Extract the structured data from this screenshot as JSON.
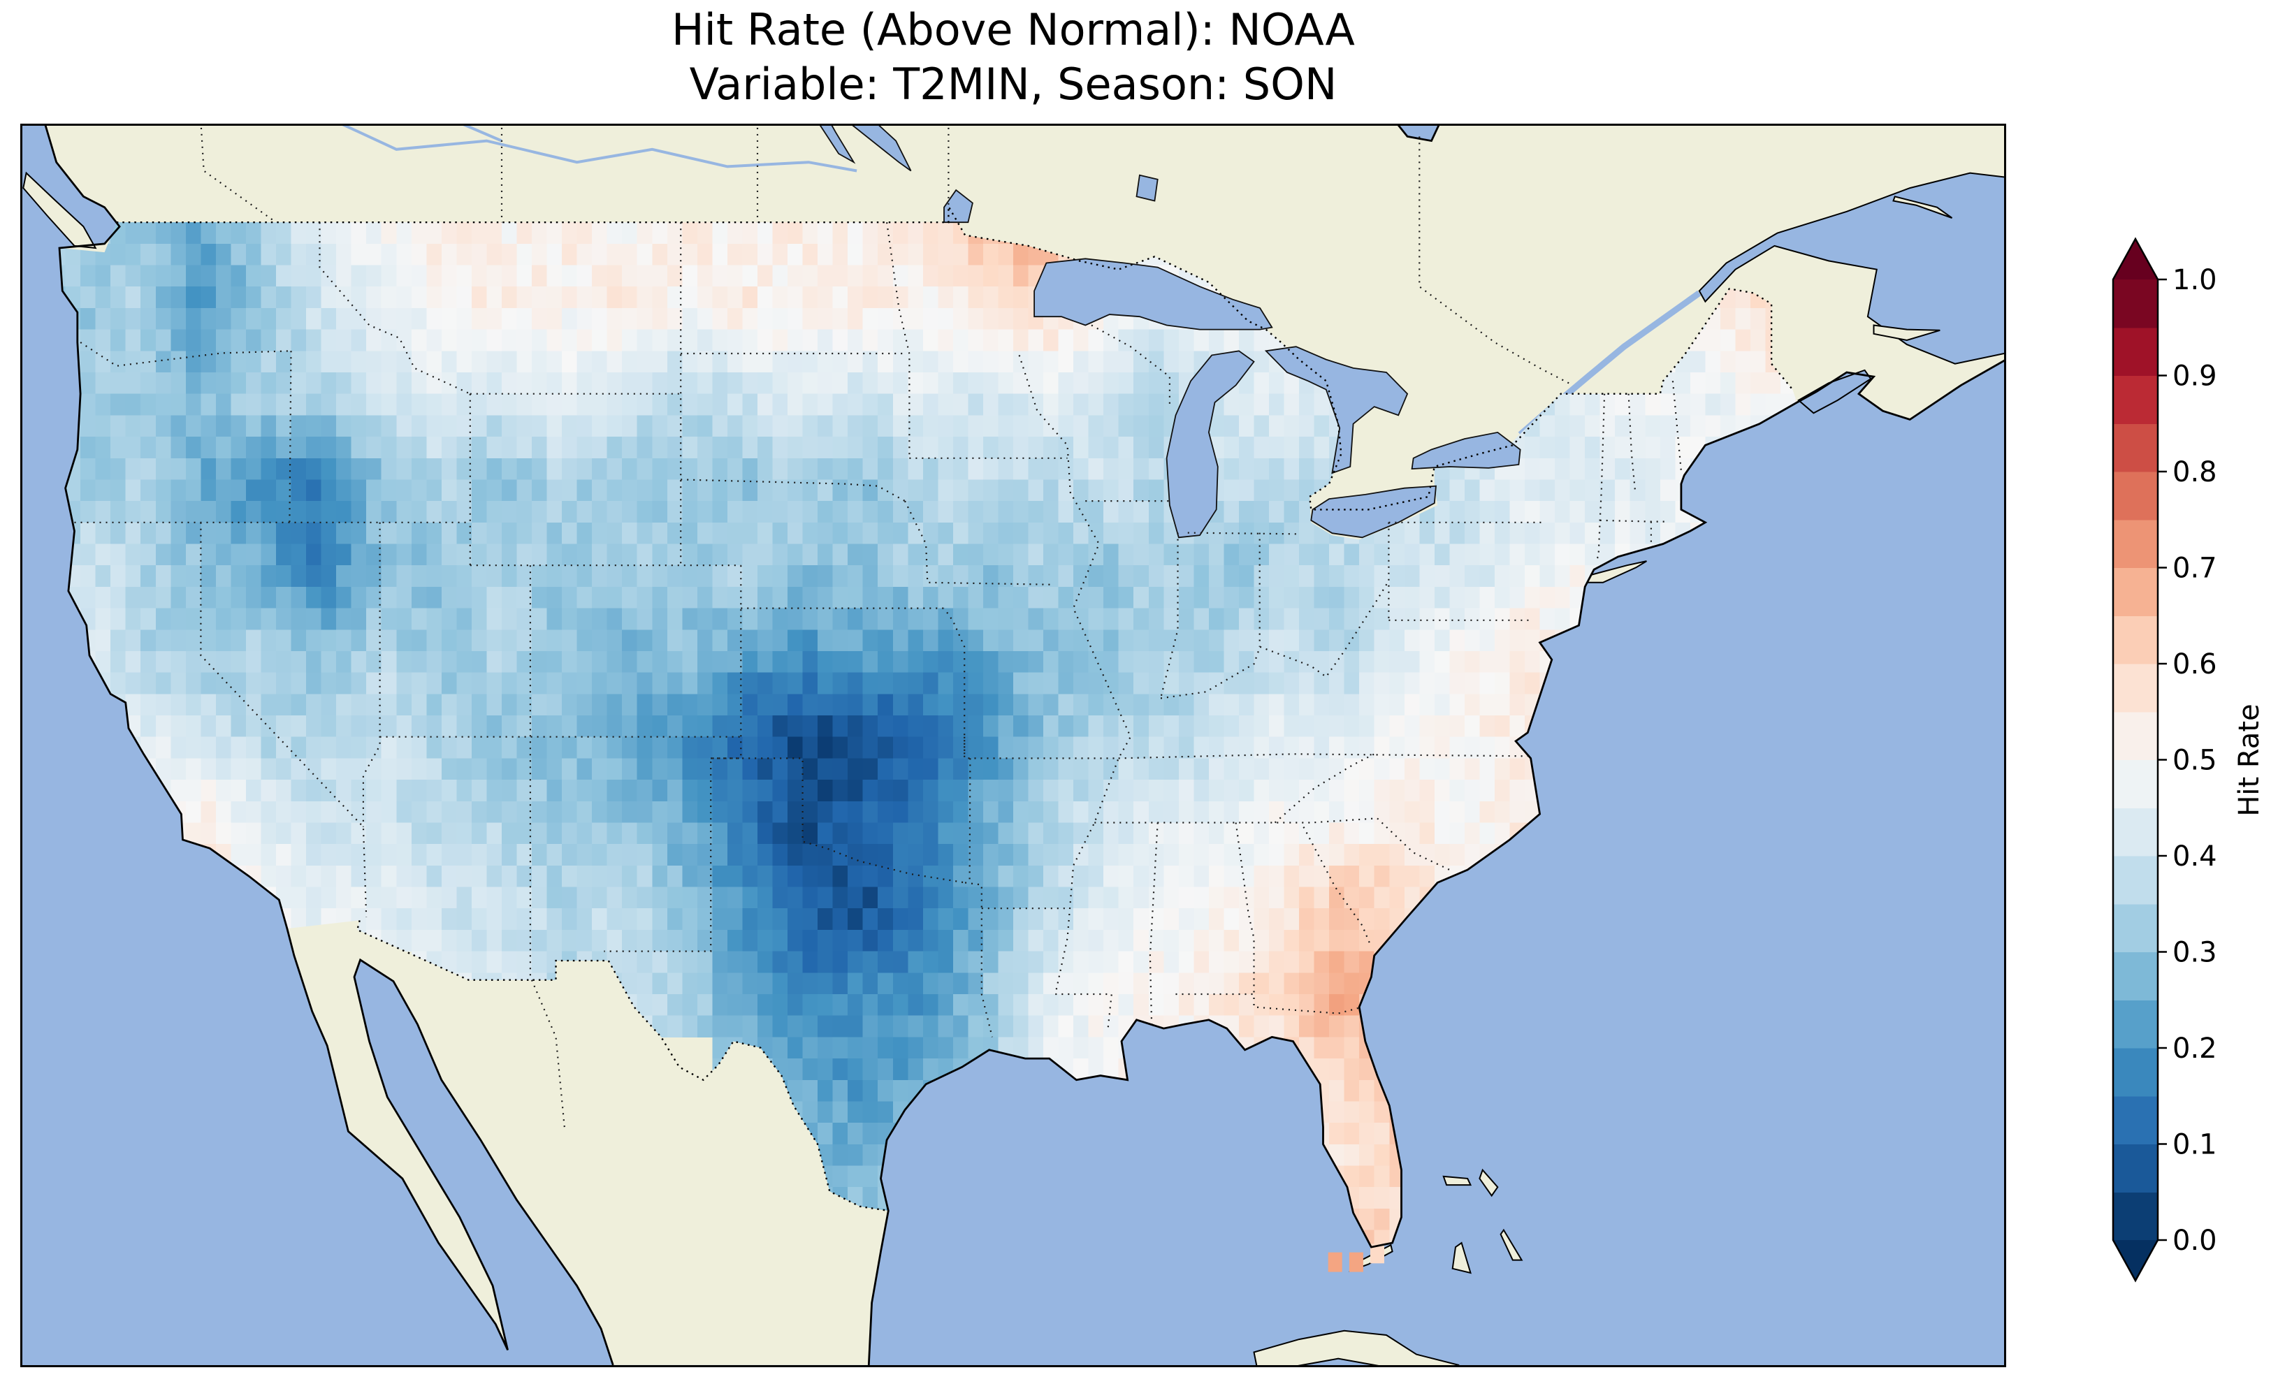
{
  "title": {
    "line1": "Hit Rate (Above Normal): NOAA",
    "line2": "Variable: T2MIN, Season: SON"
  },
  "colorbar": {
    "label": "Hit Rate",
    "ticks": [
      "0.0",
      "0.1",
      "0.2",
      "0.3",
      "0.4",
      "0.5",
      "0.6",
      "0.7",
      "0.8",
      "0.9",
      "1.0"
    ],
    "extend": "both"
  },
  "colors": {
    "ocean": "#97b6e1",
    "land": "#efefdb",
    "coastline": "#000000",
    "state_border": "#1a1a1a",
    "background": "#ffffff"
  },
  "chart_data": {
    "type": "heatmap",
    "title": "Hit Rate (Above Normal): NOAA",
    "subtitle": "Variable: T2MIN, Season: SON",
    "metric": "Hit Rate",
    "dataset": "NOAA",
    "variable": "T2MIN",
    "season": "SON",
    "region": "Contiguous United States",
    "value_range": [
      0.0,
      1.0
    ],
    "colormap": "RdBu_r",
    "colormap_stops": [
      [
        0.0,
        "#053061"
      ],
      [
        0.1,
        "#2166ac"
      ],
      [
        0.2,
        "#4393c3"
      ],
      [
        0.3,
        "#92c5de"
      ],
      [
        0.4,
        "#d1e5f0"
      ],
      [
        0.5,
        "#f7f7f7"
      ],
      [
        0.6,
        "#fddbc7"
      ],
      [
        0.7,
        "#f4a582"
      ],
      [
        0.8,
        "#d6604d"
      ],
      [
        0.9,
        "#b2182b"
      ],
      [
        1.0,
        "#67001f"
      ]
    ],
    "grid": {
      "lon_west": -125,
      "lat_north": 50,
      "dlon": 2,
      "dlat": 2,
      "ncols": 30,
      "nrows": 13,
      "values": [
        [
          0.35,
          0.3,
          0.25,
          0.35,
          0.45,
          0.5,
          0.55,
          0.5,
          0.55,
          0.5,
          0.55,
          0.5,
          0.55,
          0.5,
          0.55,
          0.65,
          0.7,
          0.55,
          0.5,
          0.45,
          0.45,
          0.4,
          0.4,
          0.45,
          0.4,
          0.45,
          0.5,
          0.55,
          0.65,
          0.6
        ],
        [
          0.3,
          0.35,
          0.2,
          0.3,
          0.4,
          0.45,
          0.5,
          0.55,
          0.5,
          0.55,
          0.5,
          0.55,
          0.5,
          0.55,
          0.5,
          0.55,
          0.6,
          0.5,
          0.45,
          0.5,
          0.45,
          0.45,
          0.45,
          0.4,
          0.45,
          0.5,
          0.45,
          0.5,
          0.6,
          0.6
        ],
        [
          0.35,
          0.3,
          0.3,
          0.35,
          0.35,
          0.4,
          0.45,
          0.4,
          0.45,
          0.4,
          0.35,
          0.4,
          0.45,
          0.4,
          0.45,
          0.4,
          0.45,
          0.4,
          0.35,
          0.4,
          0.45,
          0.4,
          0.4,
          0.45,
          0.4,
          0.45,
          0.5,
          0.45,
          0.5,
          0.55
        ],
        [
          0.3,
          0.35,
          0.25,
          0.2,
          0.15,
          0.3,
          0.35,
          0.3,
          0.35,
          0.3,
          0.35,
          0.3,
          0.35,
          0.3,
          0.35,
          0.4,
          0.35,
          0.4,
          0.35,
          0.4,
          0.35,
          0.4,
          0.35,
          0.4,
          0.45,
          0.4,
          0.45,
          0.5,
          0.45,
          0.5
        ],
        [
          0.4,
          0.35,
          0.3,
          0.25,
          0.15,
          0.3,
          0.3,
          0.35,
          0.3,
          0.35,
          0.3,
          0.35,
          0.3,
          0.3,
          0.35,
          0.3,
          0.35,
          0.3,
          0.35,
          0.3,
          0.35,
          0.35,
          0.4,
          0.4,
          0.45,
          0.5,
          0.45,
          0.5,
          0.5,
          0.5
        ],
        [
          0.45,
          0.35,
          0.3,
          0.35,
          0.3,
          0.35,
          0.3,
          0.35,
          0.3,
          0.25,
          0.3,
          0.25,
          0.2,
          0.25,
          0.2,
          0.25,
          0.3,
          0.3,
          0.35,
          0.35,
          0.4,
          0.35,
          0.45,
          0.5,
          0.55,
          0.5,
          null,
          null,
          null,
          null
        ],
        [
          0.4,
          0.45,
          0.4,
          0.35,
          0.35,
          0.4,
          0.35,
          0.3,
          0.3,
          0.25,
          0.2,
          0.1,
          0.05,
          0.05,
          0.1,
          0.2,
          0.3,
          0.35,
          0.35,
          0.4,
          0.45,
          0.45,
          0.5,
          0.5,
          0.55,
          0.55,
          null,
          null,
          null,
          null
        ],
        [
          null,
          0.5,
          0.55,
          0.45,
          0.4,
          0.4,
          0.35,
          0.35,
          0.3,
          0.3,
          0.25,
          0.15,
          0.05,
          0.1,
          0.15,
          0.25,
          0.35,
          0.4,
          0.45,
          0.45,
          0.5,
          0.5,
          0.55,
          0.5,
          0.55,
          null,
          null,
          null,
          null,
          null
        ],
        [
          null,
          null,
          null,
          0.5,
          0.45,
          0.45,
          0.4,
          0.4,
          0.35,
          0.4,
          0.3,
          0.2,
          0.1,
          0.05,
          0.15,
          0.25,
          0.35,
          0.45,
          0.5,
          0.5,
          0.55,
          0.65,
          0.6,
          0.55,
          null,
          null,
          null,
          null,
          null,
          null
        ],
        [
          null,
          null,
          null,
          null,
          null,
          null,
          0.45,
          0.4,
          0.35,
          0.4,
          0.35,
          0.25,
          0.15,
          0.2,
          0.2,
          0.3,
          0.45,
          0.5,
          0.5,
          0.55,
          0.6,
          0.7,
          0.6,
          null,
          null,
          null,
          null,
          null,
          null,
          null
        ],
        [
          null,
          null,
          null,
          null,
          null,
          null,
          null,
          null,
          null,
          null,
          null,
          0.3,
          0.25,
          0.2,
          0.25,
          0.3,
          0.45,
          0.5,
          0.5,
          0.55,
          0.55,
          0.6,
          0.65,
          null,
          null,
          null,
          null,
          null,
          null,
          null
        ],
        [
          null,
          null,
          null,
          null,
          null,
          null,
          null,
          null,
          null,
          null,
          null,
          null,
          0.3,
          0.25,
          0.3,
          null,
          null,
          null,
          null,
          null,
          null,
          0.55,
          0.6,
          null,
          null,
          null,
          null,
          null,
          null,
          null
        ],
        [
          null,
          null,
          null,
          null,
          null,
          null,
          null,
          null,
          null,
          null,
          null,
          null,
          null,
          0.35,
          0.3,
          null,
          null,
          null,
          null,
          null,
          null,
          0.7,
          0.55,
          null,
          null,
          null,
          null,
          null,
          null,
          null
        ]
      ]
    },
    "extra_cells": [
      {
        "lon": -82.3,
        "lat": 24.75,
        "value": 0.7
      },
      {
        "lon": -81.6,
        "lat": 24.75,
        "value": 0.7
      },
      {
        "lon": -80.9,
        "lat": 24.95,
        "value": 0.6
      }
    ]
  }
}
